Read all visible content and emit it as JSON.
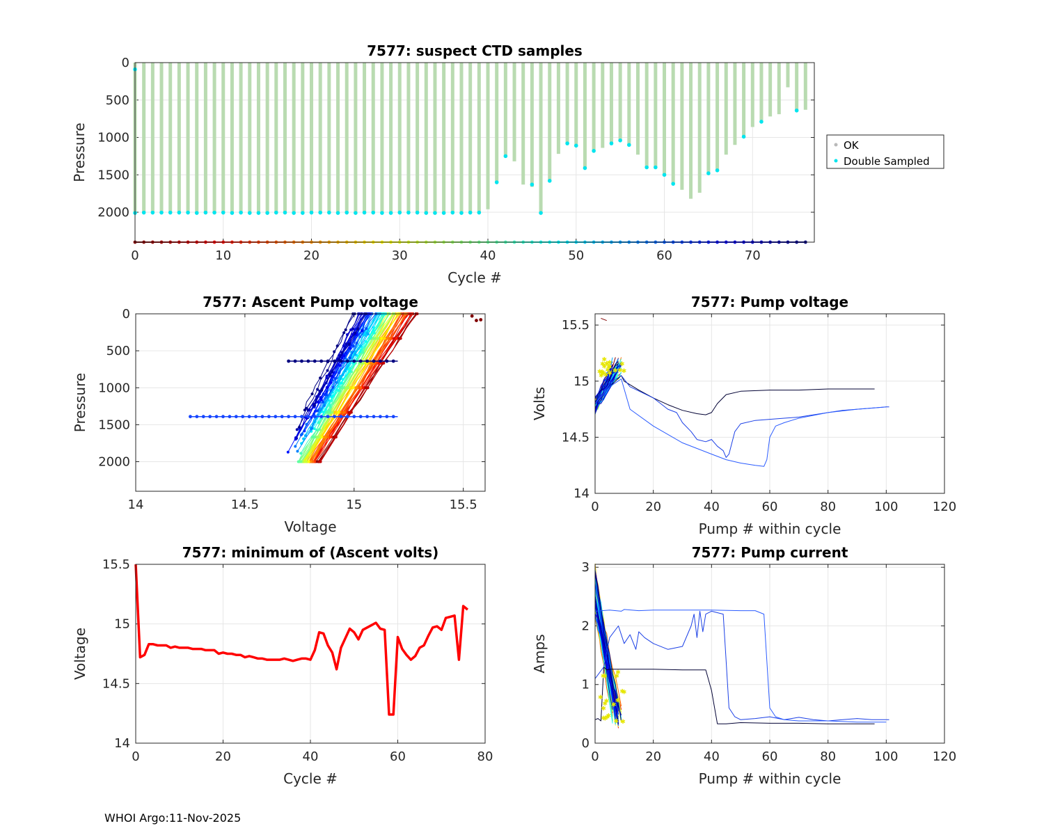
{
  "footer": "WHOI Argo:11-Nov-2025",
  "chart_data": [
    {
      "id": "ctd",
      "type": "bar",
      "title": "7577: suspect CTD samples",
      "xlabel": "Cycle #",
      "ylabel": "Pressure",
      "xlim": [
        0,
        77
      ],
      "ylim": [
        0,
        2400
      ],
      "y_reversed": true,
      "xticks": [
        "0",
        "10",
        "20",
        "30",
        "40",
        "50",
        "60",
        "70"
      ],
      "yticks": [
        "0",
        "500",
        "1000",
        "1500",
        "2000"
      ],
      "legend": {
        "placement": "right",
        "entries": [
          "OK",
          "Double Sampled"
        ]
      },
      "colors": {
        "ok": "#b9dbb1",
        "double": "#00e5ee"
      },
      "cycles": [
        0,
        1,
        2,
        3,
        4,
        5,
        6,
        7,
        8,
        9,
        10,
        11,
        12,
        13,
        14,
        15,
        16,
        17,
        18,
        19,
        20,
        21,
        22,
        23,
        24,
        25,
        26,
        27,
        28,
        29,
        30,
        31,
        32,
        33,
        34,
        35,
        36,
        37,
        38,
        39,
        40,
        41,
        42,
        43,
        44,
        45,
        46,
        47,
        48,
        49,
        50,
        51,
        52,
        53,
        54,
        55,
        56,
        57,
        58,
        59,
        60,
        61,
        62,
        63,
        64,
        65,
        66,
        67,
        68,
        69,
        70,
        71,
        72,
        73,
        74,
        75,
        76
      ],
      "max_pressure": [
        2010,
        2005,
        2005,
        2005,
        2005,
        2005,
        2005,
        2010,
        2005,
        2005,
        2005,
        2010,
        2005,
        2010,
        2010,
        2010,
        2005,
        2005,
        2010,
        2010,
        2005,
        2005,
        2005,
        2010,
        2005,
        2010,
        2005,
        2005,
        2010,
        2010,
        2005,
        2005,
        2005,
        2010,
        2010,
        2010,
        2005,
        2010,
        2005,
        2005,
        1960,
        1600,
        1250,
        1320,
        1630,
        1660,
        2010,
        1580,
        1220,
        1080,
        1110,
        1410,
        1180,
        1140,
        1080,
        1040,
        1100,
        1230,
        1400,
        1400,
        1500,
        1620,
        1700,
        1820,
        1740,
        1480,
        1440,
        1230,
        1100,
        990,
        860,
        790,
        720,
        690,
        330,
        640,
        630
      ],
      "double_sampled_pressures": [
        [
          2010,
          90
        ],
        [
          2005
        ],
        [
          2005
        ],
        [
          2005
        ],
        [
          2005
        ],
        [
          2005
        ],
        [
          2005
        ],
        [
          2010
        ],
        [
          2005
        ],
        [
          2005
        ],
        [
          2005
        ],
        [
          2010
        ],
        [
          2005
        ],
        [
          2010
        ],
        [
          2010
        ],
        [
          2010
        ],
        [
          2005
        ],
        [
          2005
        ],
        [
          2010
        ],
        [
          2010
        ],
        [
          2005
        ],
        [
          2005
        ],
        [
          2005
        ],
        [
          2010
        ],
        [
          2005
        ],
        [
          2010
        ],
        [
          2005
        ],
        [
          2005
        ],
        [
          2010
        ],
        [
          2010
        ],
        [
          2005
        ],
        [
          2005
        ],
        [
          2005
        ],
        [
          2010
        ],
        [
          2010
        ],
        [
          2010
        ],
        [
          2005
        ],
        [
          2010
        ],
        [
          2005
        ],
        [
          2005
        ],
        [],
        [
          1600
        ],
        [
          1250
        ],
        [],
        [],
        [
          1630
        ],
        [
          2010
        ],
        [
          1580
        ],
        [],
        [
          1080
        ],
        [
          1110
        ],
        [
          1410
        ],
        [
          1180
        ],
        [],
        [
          1080
        ],
        [
          1040
        ],
        [
          1100
        ],
        [],
        [
          1400
        ],
        [
          1400
        ],
        [
          1500
        ],
        [
          1620
        ],
        [],
        [],
        [],
        [
          1480
        ],
        [
          1440
        ],
        [],
        [],
        [
          990
        ],
        [],
        [
          790
        ],
        [],
        [],
        [],
        [
          640
        ],
        []
      ]
    },
    {
      "id": "ascent",
      "type": "line",
      "title": "7577: Ascent Pump voltage",
      "xlabel": "Voltage",
      "ylabel": "Pressure",
      "xlim": [
        14,
        15.6
      ],
      "ylim": [
        0,
        2400
      ],
      "y_reversed": true,
      "xticks": [
        "14",
        "14.5",
        "15",
        "15.5"
      ],
      "yticks": [
        "0",
        "500",
        "1000",
        "1500",
        "2000"
      ],
      "profile_model": {
        "bottom_pressure": 2000,
        "bottom_voltage": [
          14.66,
          14.84
        ],
        "top_voltage": [
          15.02,
          15.28
        ]
      },
      "horizontal_series": [
        {
          "pressure": 640,
          "voltage_range": [
            14.7,
            15.2
          ],
          "color": "#000080"
        },
        {
          "pressure": 1390,
          "voltage_range": [
            14.25,
            15.2
          ],
          "color": "#1646ff"
        }
      ],
      "outlier_points": [
        {
          "voltage": 15.54,
          "pressure": 30
        },
        {
          "voltage": 15.56,
          "pressure": 90
        },
        {
          "voltage": 15.58,
          "pressure": 80
        }
      ]
    },
    {
      "id": "pumpv",
      "type": "line",
      "title": "7577: Pump voltage",
      "xlabel": "Pump # within cycle",
      "ylabel": "Volts",
      "xlim": [
        0,
        120
      ],
      "ylim": [
        14,
        15.6
      ],
      "xticks": [
        "0",
        "20",
        "40",
        "60",
        "80",
        "100",
        "120"
      ],
      "yticks": [
        "14",
        "14.5",
        "15",
        "15.5"
      ],
      "series": [
        {
          "name": "cycle-late-1",
          "color": "#000033",
          "x": [
            0,
            5,
            9,
            10,
            15,
            20,
            25,
            30,
            35,
            38,
            40,
            42,
            45,
            50,
            60,
            70,
            80,
            90,
            96
          ],
          "y": [
            14.8,
            14.95,
            15.05,
            15.0,
            14.92,
            14.85,
            14.79,
            14.74,
            14.71,
            14.7,
            14.72,
            14.8,
            14.88,
            14.91,
            14.92,
            14.92,
            14.93,
            14.93,
            14.93
          ]
        },
        {
          "name": "cycle-late-2",
          "color": "#1a3fe6",
          "x": [
            0,
            5,
            9,
            12,
            20,
            25,
            28,
            30,
            33,
            35,
            38,
            40,
            42,
            44,
            45,
            46,
            48,
            50,
            55,
            60,
            65,
            70,
            75,
            80,
            85,
            90,
            95,
            100,
            101
          ],
          "y": [
            14.8,
            14.98,
            15.05,
            14.95,
            14.85,
            14.75,
            14.72,
            14.63,
            14.55,
            14.48,
            14.46,
            14.48,
            14.42,
            14.38,
            14.32,
            14.35,
            14.55,
            14.62,
            14.65,
            14.66,
            14.67,
            14.68,
            14.7,
            14.72,
            14.74,
            14.75,
            14.76,
            14.77,
            14.77
          ]
        },
        {
          "name": "cycle-late-3",
          "color": "#2a5bff",
          "x": [
            0,
            5,
            9,
            12,
            20,
            30,
            40,
            45,
            50,
            55,
            58,
            59,
            60,
            62,
            65,
            70,
            80,
            90,
            100
          ],
          "y": [
            14.8,
            14.95,
            15.02,
            14.75,
            14.6,
            14.45,
            14.35,
            14.3,
            14.27,
            14.25,
            14.24,
            14.3,
            14.5,
            14.6,
            14.63,
            14.67,
            14.72,
            14.75,
            14.77
          ]
        }
      ]
    },
    {
      "id": "minv",
      "type": "line",
      "title": "7577: minimum of (Ascent volts)",
      "xlabel": "Cycle #",
      "ylabel": "Voltage",
      "xlim": [
        0,
        80
      ],
      "ylim": [
        14,
        15.5
      ],
      "xticks": [
        "0",
        "20",
        "40",
        "60",
        "80"
      ],
      "yticks": [
        "14",
        "14.5",
        "15",
        "15.5"
      ],
      "series": [
        {
          "name": "min ascent voltage",
          "color": "#ff0000",
          "x": [
            0,
            1,
            2,
            3,
            4,
            5,
            6,
            7,
            8,
            9,
            10,
            11,
            12,
            13,
            14,
            15,
            16,
            17,
            18,
            19,
            20,
            21,
            22,
            23,
            24,
            25,
            26,
            27,
            28,
            29,
            30,
            31,
            32,
            33,
            34,
            35,
            36,
            37,
            38,
            39,
            40,
            41,
            42,
            43,
            44,
            45,
            46,
            47,
            48,
            49,
            50,
            51,
            52,
            53,
            54,
            55,
            56,
            57,
            58,
            59,
            60,
            61,
            62,
            63,
            64,
            65,
            66,
            67,
            68,
            69,
            70,
            71,
            72,
            73,
            74,
            75,
            76
          ],
          "y": [
            15.5,
            14.72,
            14.74,
            14.83,
            14.83,
            14.82,
            14.82,
            14.82,
            14.8,
            14.81,
            14.8,
            14.8,
            14.8,
            14.79,
            14.79,
            14.79,
            14.78,
            14.78,
            14.78,
            14.75,
            14.76,
            14.75,
            14.75,
            14.74,
            14.74,
            14.72,
            14.73,
            14.72,
            14.71,
            14.71,
            14.7,
            14.7,
            14.7,
            14.7,
            14.71,
            14.7,
            14.69,
            14.7,
            14.71,
            14.71,
            14.7,
            14.78,
            14.93,
            14.92,
            14.82,
            14.76,
            14.62,
            14.8,
            14.88,
            14.96,
            14.93,
            14.87,
            14.95,
            14.97,
            14.99,
            15.01,
            14.96,
            14.95,
            14.24,
            14.24,
            14.89,
            14.79,
            14.74,
            14.7,
            14.73,
            14.8,
            14.82,
            14.9,
            14.97,
            14.98,
            14.95,
            15.05,
            15.06,
            15.07,
            14.7,
            15.15,
            15.12
          ]
        }
      ]
    },
    {
      "id": "current",
      "type": "line",
      "title": "7577: Pump current",
      "xlabel": "Pump # within cycle",
      "ylabel": "Amps",
      "xlim": [
        0,
        120
      ],
      "ylim": [
        0,
        3.05
      ],
      "xticks": [
        "0",
        "20",
        "40",
        "60",
        "80",
        "100",
        "120"
      ],
      "yticks": [
        "0",
        "1",
        "2",
        "3"
      ],
      "series": [
        {
          "name": "cycle-late-1",
          "color": "#000033",
          "x": [
            0,
            1,
            2,
            3,
            4,
            5,
            10,
            20,
            30,
            38,
            40,
            42,
            45,
            50,
            60,
            70,
            80,
            90,
            96
          ],
          "y": [
            0.4,
            0.42,
            0.38,
            1.3,
            1.25,
            1.26,
            1.26,
            1.26,
            1.25,
            1.25,
            0.9,
            0.33,
            0.33,
            0.35,
            0.34,
            0.34,
            0.33,
            0.33,
            0.33
          ]
        },
        {
          "name": "cycle-late-2",
          "color": "#1a3fe6",
          "x": [
            0,
            3,
            5,
            8,
            10,
            12,
            14,
            15,
            17,
            20,
            25,
            30,
            33,
            34,
            35,
            36,
            37,
            38,
            40,
            44,
            45,
            46,
            48,
            50,
            55,
            60,
            65,
            70,
            75,
            80,
            85,
            90,
            95,
            100,
            101
          ],
          "y": [
            1.1,
            1.3,
            1.8,
            2.0,
            1.7,
            1.85,
            1.6,
            1.9,
            1.8,
            1.7,
            1.6,
            1.65,
            2.0,
            2.2,
            1.8,
            2.25,
            1.9,
            2.2,
            2.25,
            2.2,
            1.4,
            0.6,
            0.45,
            0.4,
            0.42,
            0.45,
            0.4,
            0.44,
            0.4,
            0.38,
            0.4,
            0.42,
            0.4,
            0.4,
            0.4
          ]
        },
        {
          "name": "cycle-late-3",
          "color": "#2a5bff",
          "x": [
            0,
            5,
            9,
            10,
            15,
            20,
            30,
            40,
            50,
            55,
            58,
            59,
            60,
            62,
            65,
            70,
            80,
            90,
            100
          ],
          "y": [
            2.25,
            2.27,
            2.25,
            2.28,
            2.26,
            2.27,
            2.27,
            2.27,
            2.26,
            2.26,
            2.2,
            1.4,
            0.6,
            0.45,
            0.4,
            0.38,
            0.38,
            0.36,
            0.36
          ]
        }
      ]
    }
  ]
}
